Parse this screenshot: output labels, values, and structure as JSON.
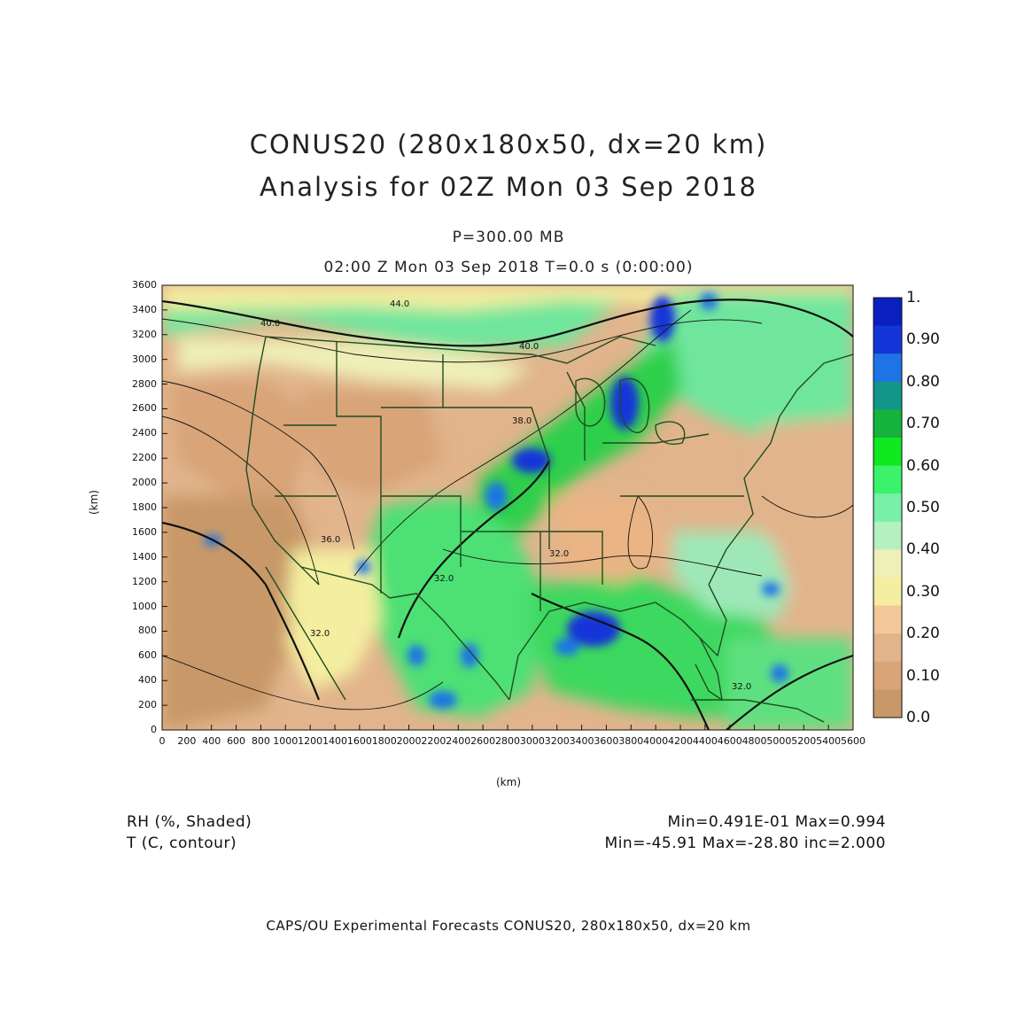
{
  "titles": {
    "line1": "CONUS20 (280x180x50, dx=20 km)",
    "line2": "Analysis for 02Z Mon 03 Sep 2018",
    "level": "P=300.00 MB",
    "time": "02:00 Z Mon 03 Sep 2018    T=0.0 s (0:00:00)"
  },
  "axes": {
    "xlabel": "(km)",
    "ylabel": "(km)",
    "x_ticks": [
      "0",
      "200",
      "400",
      "600",
      "800",
      "1000",
      "1200",
      "1400",
      "1600",
      "1800",
      "2000",
      "2200",
      "2400",
      "2600",
      "2800",
      "3000",
      "3200",
      "3400",
      "3600",
      "3800",
      "4000",
      "4200",
      "4400",
      "4600",
      "4800",
      "5000",
      "5200",
      "5400",
      "5600"
    ],
    "y_ticks": [
      "0",
      "200",
      "400",
      "600",
      "800",
      "1000",
      "1200",
      "1400",
      "1600",
      "1800",
      "2000",
      "2200",
      "2400",
      "2600",
      "2800",
      "3000",
      "3200",
      "3400",
      "3600"
    ],
    "xlim": [
      0,
      5600
    ],
    "ylim": [
      0,
      3600
    ]
  },
  "colorbar": {
    "labels": [
      "1.",
      "0.90",
      "0.80",
      "0.70",
      "0.60",
      "0.50",
      "0.40",
      "0.30",
      "0.20",
      "0.10",
      "0.0"
    ],
    "colors": [
      "#0b1fc0",
      "#1436d8",
      "#1e73e6",
      "#12968a",
      "#14b43c",
      "#10e820",
      "#3cf26a",
      "#78f0a8",
      "#b4f0c0",
      "#eef0b8",
      "#f4eea0",
      "#f2c89a",
      "#e2b48c",
      "#d8a478",
      "#c89868"
    ]
  },
  "contour_labels": [
    "44.0",
    "40.0",
    "40.0",
    "38.0",
    "36.0",
    "32.0",
    "32.0",
    "32.0",
    "32.0"
  ],
  "footer": {
    "field1": "RH (%, Shaded)",
    "field2": "T (C, contour)",
    "field1_stats": "Min=0.491E-01 Max=0.994",
    "field2_stats": "Min=-45.91 Max=-28.80 inc=2.000",
    "credit": "CAPS/OU Experimental Forecasts   CONUS20, 280x180x50, dx=20 km"
  },
  "map": {
    "field": "relative humidity",
    "region": "CONUS",
    "palette_notes": "tan = dry, green = moist, blue = near-saturated"
  }
}
